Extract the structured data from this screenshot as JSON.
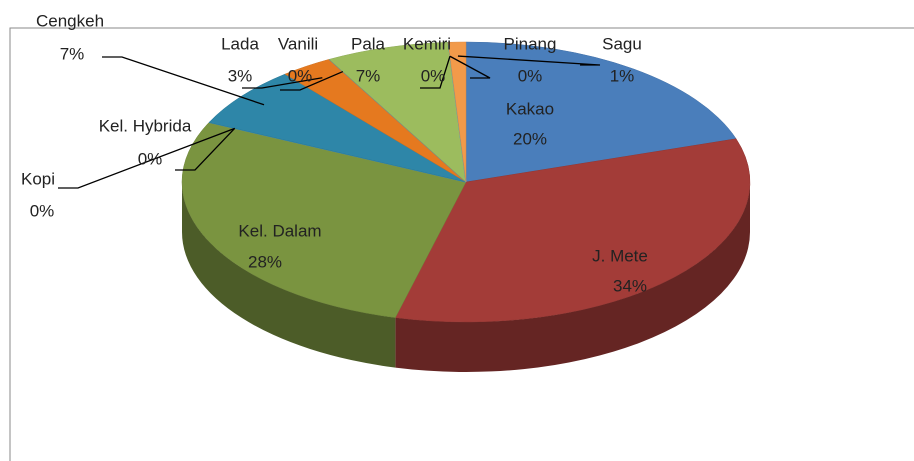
{
  "chart_data": {
    "type": "pie3d",
    "categories": [
      "Kakao",
      "J. Mete",
      "Kel. Dalam",
      "Kopi",
      "Kel. Hybrida",
      "Cengkeh",
      "Lada",
      "Vanili",
      "Pala",
      "Kemiri",
      "Pinang",
      "Sagu"
    ],
    "values": [
      20,
      34,
      28,
      0,
      0,
      7,
      3,
      0,
      7,
      0,
      0,
      1
    ],
    "value_labels": [
      "20%",
      "34%",
      "28%",
      "0%",
      "0%",
      "7%",
      "3%",
      "0%",
      "7%",
      "0%",
      "0%",
      "1%"
    ],
    "colors": [
      "#4a7ebb",
      "#a33c38",
      "#7a9440",
      "#7a5f9e",
      "#3a9bb8",
      "#2e86a8",
      "#e5791f",
      "#5a7fb8",
      "#9cbc5e",
      "#8a6bb0",
      "#4bacc6",
      "#f29a4a"
    ]
  }
}
